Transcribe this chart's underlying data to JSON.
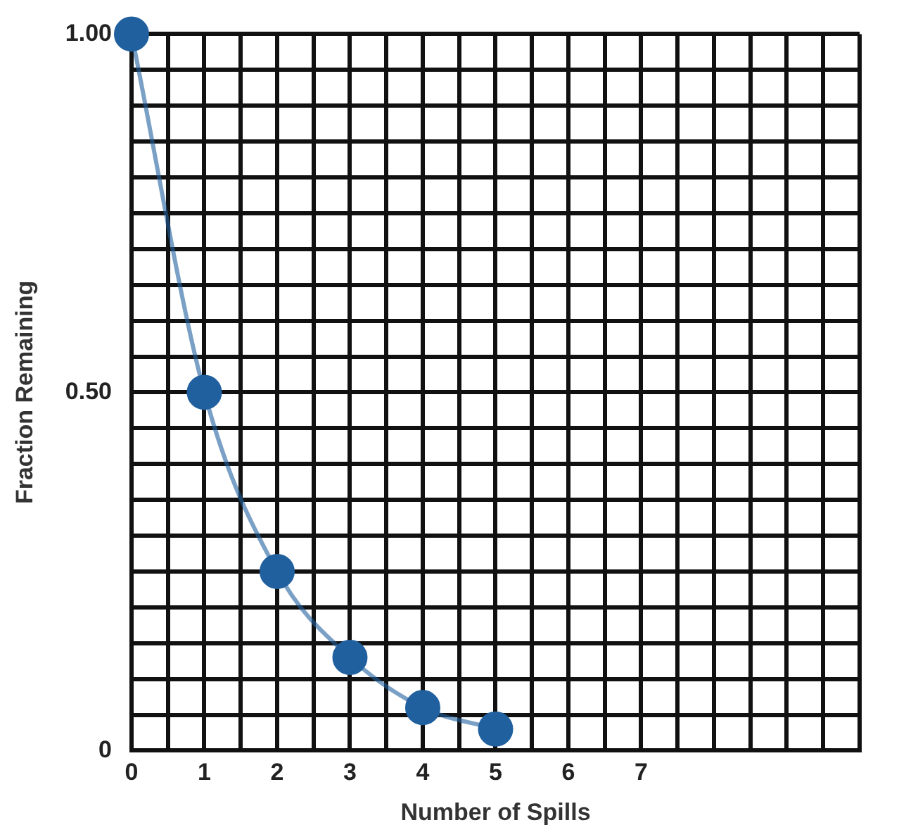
{
  "chart_data": {
    "type": "line",
    "xlabel": "Number of Spills",
    "ylabel": "Fraction Remaining",
    "x": [
      0,
      1,
      2,
      3,
      4,
      5
    ],
    "series": [
      {
        "color": "#21609f",
        "marker": "circle",
        "values": [
          1,
          0.5,
          0.25,
          0.13,
          0.06,
          0.03
        ]
      }
    ],
    "xlim": [
      0,
      10
    ],
    "xticks": [
      0,
      {
        "value": 0.5,
        "label": null
      },
      1,
      {
        "value": 1.5,
        "label": null
      },
      2,
      {
        "value": 2.5,
        "label": null
      },
      3,
      {
        "value": 3.5,
        "label": null
      },
      4,
      {
        "value": 4.5,
        "label": null
      },
      5,
      {
        "value": 5.5,
        "label": null
      },
      6,
      {
        "value": 6.5,
        "label": null
      },
      7,
      {
        "value": 7.5,
        "label": null
      },
      {
        "value": 8,
        "label": null
      },
      {
        "value": 8.5,
        "label": null
      },
      {
        "value": 9,
        "label": null
      },
      {
        "value": 9.5,
        "label": null
      },
      {
        "value": 10,
        "label": null
      }
    ],
    "ylim": [
      0,
      1
    ],
    "yticks": [
      0,
      {
        "value": 0.05,
        "label": null
      },
      {
        "value": 0.1,
        "label": null
      },
      {
        "value": 0.15,
        "label": null
      },
      {
        "value": 0.2,
        "label": null
      },
      {
        "value": 0.25,
        "label": null
      },
      {
        "value": 0.3,
        "label": null
      },
      {
        "value": 0.35,
        "label": null
      },
      {
        "value": 0.4,
        "label": null
      },
      {
        "value": 0.45,
        "label": null
      },
      {
        "value": 0.5,
        "label": "0.50"
      },
      {
        "value": 0.55,
        "label": null
      },
      {
        "value": 0.6,
        "label": null
      },
      {
        "value": 0.65,
        "label": null
      },
      {
        "value": 0.7,
        "label": null
      },
      {
        "value": 0.75,
        "label": null
      },
      {
        "value": 0.8,
        "label": null
      },
      {
        "value": 0.85,
        "label": null
      },
      {
        "value": 0.9,
        "label": null
      },
      {
        "value": 0.95,
        "label": null
      },
      {
        "value": 1,
        "label": "1.00"
      }
    ],
    "grid": true,
    "legend": false
  }
}
